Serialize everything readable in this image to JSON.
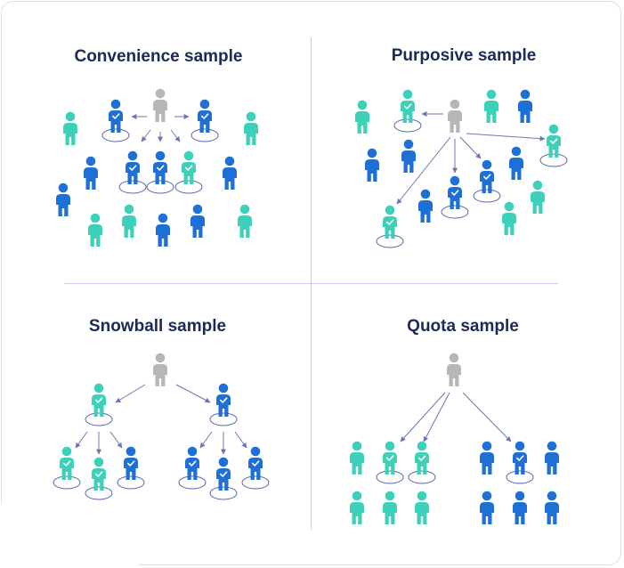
{
  "titles": {
    "convenience": "Convenience sample",
    "purposive": "Purposive sample",
    "snowball": "Snowball sample",
    "quota": "Quota sample"
  },
  "colors": {
    "researcher": "#b7b7b7",
    "blue_person": "#1e6fd6",
    "teal_person": "#3cd1b8",
    "arrow": "#6b76b7",
    "selection_ring": "#5a6aa8",
    "check": "#ffffff",
    "title": "#1c2a55"
  },
  "icons": {
    "person": "person-icon",
    "check": "check-icon",
    "arrow": "arrow-icon",
    "ring": "selection-ring"
  }
}
